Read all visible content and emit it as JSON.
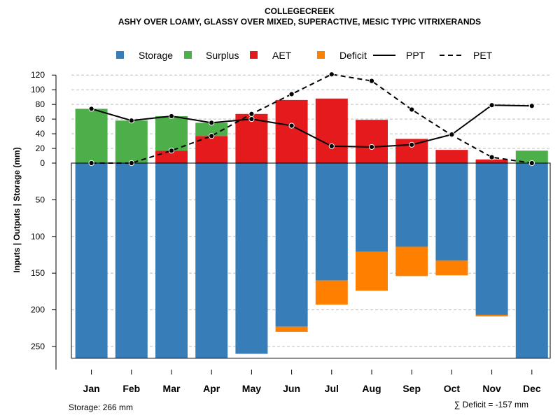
{
  "chart_data": {
    "type": "bar",
    "title_line1": "COLLEGECREEK",
    "title_line2": "ASHY OVER LOAMY, GLASSY OVER MIXED, SUPERACTIVE, MESIC TYPIC VITRIXERANDS",
    "ylabel": "Inputs | Outputs | Storage     (mm)",
    "categories": [
      "Jan",
      "Feb",
      "Mar",
      "Apr",
      "May",
      "Jun",
      "Jul",
      "Aug",
      "Sep",
      "Oct",
      "Nov",
      "Dec"
    ],
    "ylim": [
      -266,
      128
    ],
    "upper_ticks": [
      0,
      20,
      40,
      60,
      80,
      100,
      120
    ],
    "lower_ticks": [
      50,
      100,
      150,
      200,
      250
    ],
    "legend": [
      {
        "label": "Storage",
        "kind": "box",
        "color": "#377EB8"
      },
      {
        "label": "Surplus",
        "kind": "box",
        "color": "#4DAF4A"
      },
      {
        "label": "AET",
        "kind": "box",
        "color": "#E41A1C"
      },
      {
        "label": "Deficit",
        "kind": "box",
        "color": "#FF7F00"
      },
      {
        "label": "PPT",
        "kind": "solid",
        "color": "#000000"
      },
      {
        "label": "PET",
        "kind": "dashed",
        "color": "#000000"
      }
    ],
    "series": {
      "storage": [
        266,
        266,
        266,
        266,
        260,
        223,
        160,
        121,
        114,
        133,
        207,
        266
      ],
      "deficit": [
        0,
        0,
        0,
        0,
        0,
        7,
        33,
        53,
        40,
        20,
        2,
        0
      ],
      "aet": [
        0,
        0,
        17,
        37,
        67,
        86,
        88,
        59,
        33,
        18,
        5,
        0
      ],
      "surplus": [
        74,
        58,
        47,
        18,
        0,
        0,
        0,
        0,
        0,
        0,
        0,
        17
      ],
      "ppt": [
        74,
        58,
        64,
        55,
        60,
        51,
        23,
        22,
        25,
        39,
        79,
        78
      ],
      "pet": [
        0,
        0,
        17,
        37,
        67,
        94,
        121,
        112,
        73,
        38,
        8,
        0
      ]
    },
    "colors": {
      "storage": "#377EB8",
      "surplus": "#4DAF4A",
      "aet": "#E41A1C",
      "deficit": "#FF7F00",
      "grid": "#BEBEBE"
    }
  },
  "footer": {
    "storage_note": "Storage: 266 mm",
    "deficit_note": "∑ Deficit = -157 mm"
  }
}
